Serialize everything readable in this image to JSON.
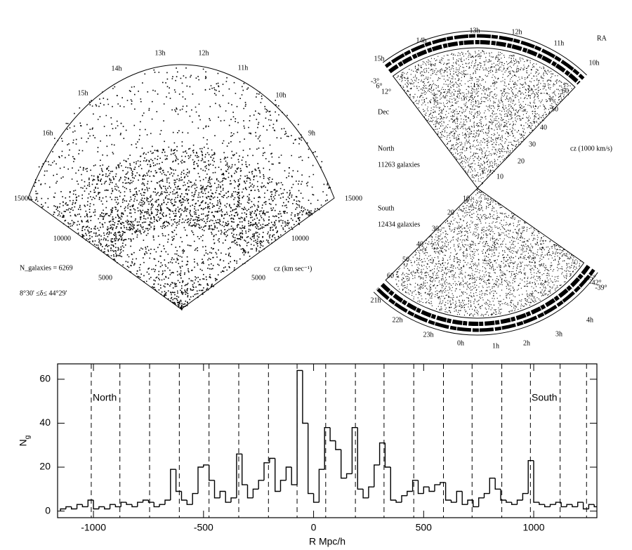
{
  "wedge_left": {
    "hour_labels": [
      "16h",
      "15h",
      "14h",
      "13h",
      "12h",
      "11h",
      "10h",
      "9h"
    ],
    "radius_labels": [
      "15000",
      "10000",
      "5000",
      "15000",
      "10000",
      "5000"
    ],
    "axis_label": "cz (km sec⁻¹)",
    "count_label": "N_galaxies = 6269",
    "dec_range": "8°30' ≤δ≤ 44°29'"
  },
  "wedge_right": {
    "north_hours": [
      "15h",
      "14h",
      "13h",
      "12h",
      "11h",
      "10h"
    ],
    "ra_label": "RA",
    "north_decs": [
      "-3°",
      "6°",
      "12°"
    ],
    "dec_label": "Dec",
    "north_label": "North",
    "north_count": "11263 galaxies",
    "axis_label": "cz (1000 km/s)",
    "north_radii": [
      "60",
      "50",
      "40",
      "30",
      "20",
      "10"
    ],
    "south_label": "South",
    "south_count": "12434 galaxies",
    "south_radii": [
      "10",
      "20",
      "30",
      "40",
      "50",
      "60"
    ],
    "south_hours": [
      "21h",
      "22h",
      "23h",
      "0h",
      "1h",
      "2h",
      "3h",
      "4h"
    ],
    "south_decs": [
      "-45°",
      "-42°",
      "-39°"
    ]
  },
  "chart_data": {
    "type": "histogram",
    "xlabel": "R Mpc/h",
    "ylabel": "N",
    "ylabel_sub": "g",
    "annotations": [
      "North",
      "South"
    ],
    "bins": [
      -1150,
      -1125,
      -1100,
      -1075,
      -1050,
      -1025,
      -1000,
      -975,
      -950,
      -925,
      -900,
      -875,
      -850,
      -825,
      -800,
      -775,
      -750,
      -725,
      -700,
      -675,
      -650,
      -625,
      -600,
      -575,
      -550,
      -525,
      -500,
      -475,
      -450,
      -425,
      -400,
      -375,
      -350,
      -325,
      -300,
      -275,
      -250,
      -225,
      -200,
      -175,
      -150,
      -125,
      -100,
      -75,
      -50,
      -25,
      0,
      25,
      50,
      75,
      100,
      125,
      150,
      175,
      200,
      225,
      250,
      275,
      300,
      325,
      350,
      375,
      400,
      425,
      450,
      475,
      500,
      525,
      550,
      575,
      600,
      625,
      650,
      675,
      700,
      725,
      750,
      775,
      800,
      825,
      850,
      875,
      900,
      925,
      950,
      975,
      1000,
      1025,
      1050,
      1075,
      1100,
      1125,
      1150,
      1175,
      1200,
      1225,
      1250,
      1275,
      1300
    ],
    "values": [
      1,
      2,
      1,
      3,
      2,
      5,
      1,
      2,
      1,
      3,
      2,
      4,
      3,
      2,
      4,
      5,
      4,
      2,
      3,
      5,
      19,
      9,
      5,
      3,
      8,
      20,
      21,
      14,
      6,
      9,
      4,
      6,
      26,
      12,
      6,
      10,
      14,
      22,
      24,
      9,
      14,
      20,
      12,
      64,
      40,
      8,
      4,
      19,
      38,
      32,
      28,
      15,
      17,
      38,
      10,
      6,
      11,
      21,
      31,
      20,
      5,
      4,
      7,
      9,
      14,
      8,
      11,
      9,
      12,
      13,
      5,
      4,
      9,
      3,
      5,
      2,
      6,
      8,
      15,
      10,
      5,
      4,
      3,
      5,
      8,
      23,
      4,
      3,
      2,
      3,
      4,
      2,
      3,
      2,
      4,
      1,
      3,
      2
    ],
    "color": "#000000",
    "vlines": [
      -1010,
      -880,
      -745,
      -610,
      -475,
      -340,
      -205,
      -75,
      55,
      190,
      320,
      455,
      590,
      720,
      855,
      985,
      1120,
      1240
    ],
    "xlim": [
      -1163,
      1287
    ],
    "ylim": [
      -3,
      67
    ],
    "xticks": [
      -1000,
      -500,
      0,
      500,
      1000
    ],
    "yticks": [
      0,
      20,
      40,
      60
    ]
  }
}
